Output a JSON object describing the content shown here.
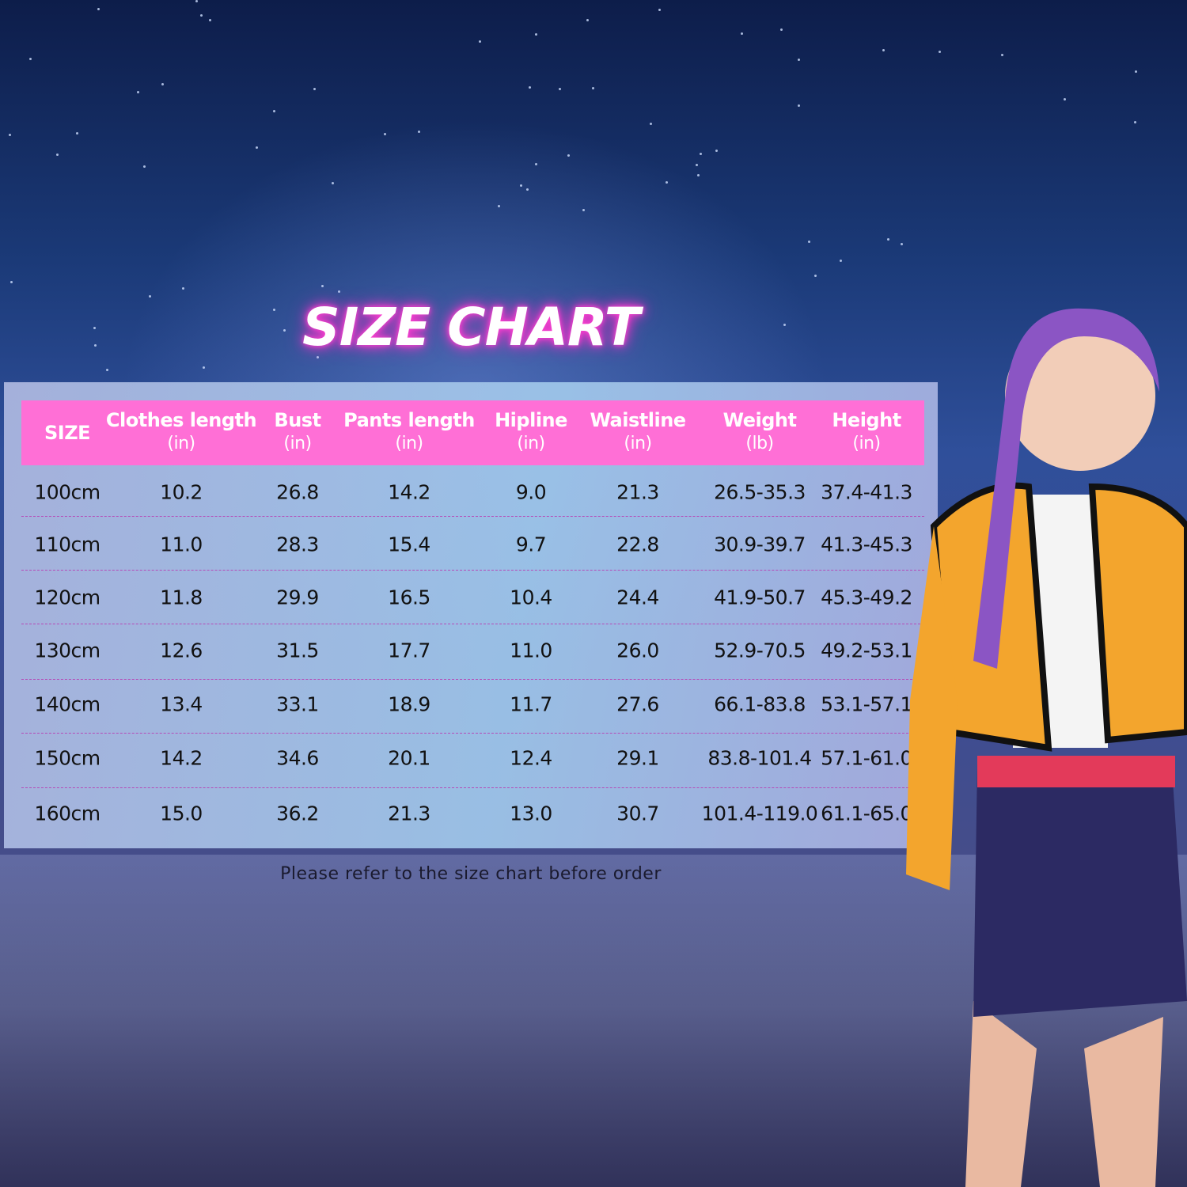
{
  "title": "SIZE CHART",
  "footer_note": "Please refer to the size chart before order",
  "colors": {
    "header_bg": "#ff6fd6",
    "title_glow": "#ff3fd0",
    "separator": "#b54bb8"
  },
  "chart_data": {
    "type": "table",
    "title": "SIZE CHART",
    "columns": [
      {
        "name": "SIZE",
        "unit": ""
      },
      {
        "name": "Clothes length",
        "unit": "(in)"
      },
      {
        "name": "Bust",
        "unit": "(in)"
      },
      {
        "name": "Pants length",
        "unit": "(in)"
      },
      {
        "name": "Hipline",
        "unit": "(in)"
      },
      {
        "name": "Waistline",
        "unit": "(in)"
      },
      {
        "name": "Weight",
        "unit": "(lb)"
      },
      {
        "name": "Height",
        "unit": "(in)"
      }
    ],
    "rows": [
      [
        "100cm",
        "10.2",
        "26.8",
        "14.2",
        "9.0",
        "21.3",
        "26.5-35.3",
        "37.4-41.3"
      ],
      [
        "110cm",
        "11.0",
        "28.3",
        "15.4",
        "9.7",
        "22.8",
        "30.9-39.7",
        "41.3-45.3"
      ],
      [
        "120cm",
        "11.8",
        "29.9",
        "16.5",
        "10.4",
        "24.4",
        "41.9-50.7",
        "45.3-49.2"
      ],
      [
        "130cm",
        "12.6",
        "31.5",
        "17.7",
        "11.0",
        "26.0",
        "52.9-70.5",
        "49.2-53.1"
      ],
      [
        "140cm",
        "13.4",
        "33.1",
        "18.9",
        "11.7",
        "27.6",
        "66.1-83.8",
        "53.1-57.1"
      ],
      [
        "150cm",
        "14.2",
        "34.6",
        "20.1",
        "12.4",
        "29.1",
        "83.8-101.4",
        "57.1-61.0"
      ],
      [
        "160cm",
        "15.0",
        "36.2",
        "21.3",
        "13.0",
        "30.7",
        "101.4-119.0",
        "61.1-65.0"
      ]
    ]
  }
}
